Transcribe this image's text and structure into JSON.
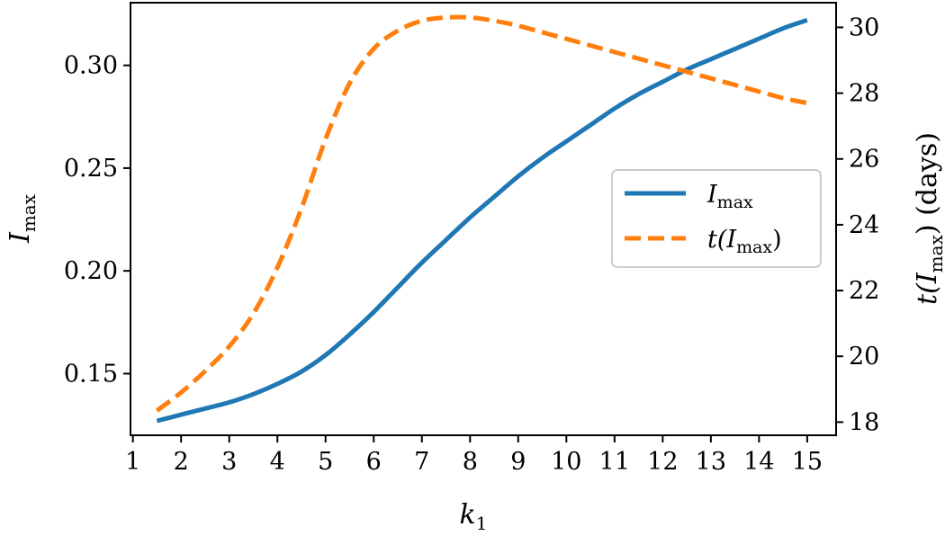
{
  "chart_data": {
    "type": "line",
    "xlabel": "k",
    "xlabel_sub": "1",
    "ylabel_left": "I",
    "ylabel_left_sub": "max",
    "ylabel_right_prefix": "t(I",
    "ylabel_right_sub": "max",
    "ylabel_right_suffix": ")  (days)",
    "xlim": [
      0.95,
      15.6
    ],
    "ylim_left": [
      0.12,
      0.3305
    ],
    "ylim_right": [
      17.6,
      30.75
    ],
    "xticks": [
      1,
      2,
      3,
      4,
      5,
      6,
      7,
      8,
      9,
      10,
      11,
      12,
      13,
      14,
      15
    ],
    "yticks_left": [
      {
        "value": 0.15,
        "label": "0.15"
      },
      {
        "value": 0.2,
        "label": "0.20"
      },
      {
        "value": 0.25,
        "label": "0.25"
      },
      {
        "value": 0.3,
        "label": "0.30"
      }
    ],
    "yticks_right": [
      {
        "value": 18,
        "label": "18"
      },
      {
        "value": 20,
        "label": "20"
      },
      {
        "value": 22,
        "label": "22"
      },
      {
        "value": 24,
        "label": "24"
      },
      {
        "value": 26,
        "label": "26"
      },
      {
        "value": 28,
        "label": "28"
      },
      {
        "value": 30,
        "label": "30"
      }
    ],
    "grid": false,
    "legend": "center-right",
    "series": [
      {
        "name": "I",
        "name_sub": "max",
        "axis": "left",
        "style": "solid",
        "color": "#1f77b4",
        "x": [
          1.5,
          2,
          2.5,
          3,
          3.5,
          4,
          4.5,
          5,
          5.5,
          6,
          6.5,
          7,
          7.5,
          8,
          8.5,
          9,
          9.5,
          10,
          10.5,
          11,
          11.5,
          12,
          12.5,
          13,
          13.5,
          14,
          14.5,
          15
        ],
        "y": [
          0.127,
          0.13,
          0.133,
          0.136,
          0.14,
          0.145,
          0.151,
          0.159,
          0.169,
          0.18,
          0.192,
          0.204,
          0.215,
          0.226,
          0.236,
          0.246,
          0.255,
          0.263,
          0.271,
          0.279,
          0.286,
          0.292,
          0.298,
          0.303,
          0.308,
          0.313,
          0.318,
          0.322
        ]
      },
      {
        "name": "t(I",
        "name_sub": "max",
        "name_suffix": ")",
        "axis": "right",
        "style": "dashed",
        "color": "#ff7f0e",
        "x": [
          1.5,
          2,
          2.5,
          3,
          3.5,
          4,
          4.5,
          5,
          5.5,
          6,
          6.5,
          7,
          7.5,
          8,
          8.5,
          9,
          9.5,
          10,
          10.5,
          11,
          11.5,
          12,
          12.5,
          13,
          13.5,
          14,
          14.5,
          15
        ],
        "y": [
          18.35,
          18.9,
          19.55,
          20.3,
          21.3,
          22.7,
          24.5,
          26.6,
          28.3,
          29.35,
          29.9,
          30.2,
          30.3,
          30.3,
          30.2,
          30.05,
          29.85,
          29.65,
          29.45,
          29.25,
          29.05,
          28.85,
          28.65,
          28.45,
          28.25,
          28.05,
          27.85,
          27.7
        ]
      }
    ]
  }
}
